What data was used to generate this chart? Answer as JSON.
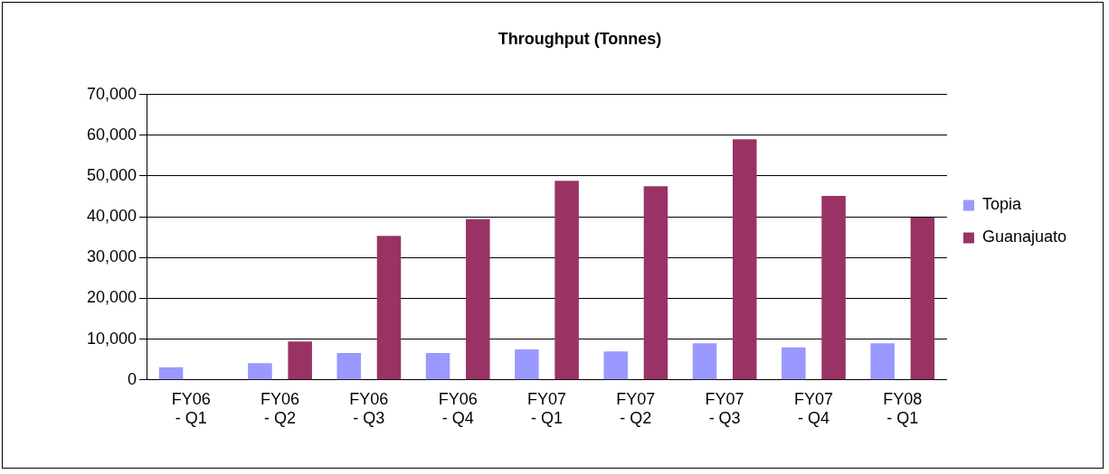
{
  "chart_data": {
    "type": "bar",
    "title": "Throughput (Tonnes)",
    "categories": [
      "FY06 - Q1",
      "FY06 - Q2",
      "FY06 - Q3",
      "FY06 - Q4",
      "FY07 - Q1",
      "FY07 - Q2",
      "FY07 - Q3",
      "FY07 - Q4",
      "FY08 - Q1"
    ],
    "series": [
      {
        "name": "Topia",
        "color": "#9999ff",
        "values": [
          3100,
          4100,
          6600,
          6600,
          7500,
          7000,
          9000,
          8000,
          9000
        ]
      },
      {
        "name": "Guanajuato",
        "color": "#993366",
        "values": [
          0,
          9400,
          35300,
          39400,
          48800,
          47500,
          59000,
          45100,
          39800
        ]
      }
    ],
    "ylim": [
      0,
      70000
    ],
    "yticks": [
      {
        "value": 0,
        "label": "0"
      },
      {
        "value": 10000,
        "label": "10,000"
      },
      {
        "value": 20000,
        "label": "20,000"
      },
      {
        "value": 30000,
        "label": "30,000"
      },
      {
        "value": 40000,
        "label": "40,000"
      },
      {
        "value": 50000,
        "label": "50,000"
      },
      {
        "value": 60000,
        "label": "60,000"
      },
      {
        "value": 70000,
        "label": "70,000"
      }
    ],
    "grid": "y",
    "legend": "right"
  }
}
